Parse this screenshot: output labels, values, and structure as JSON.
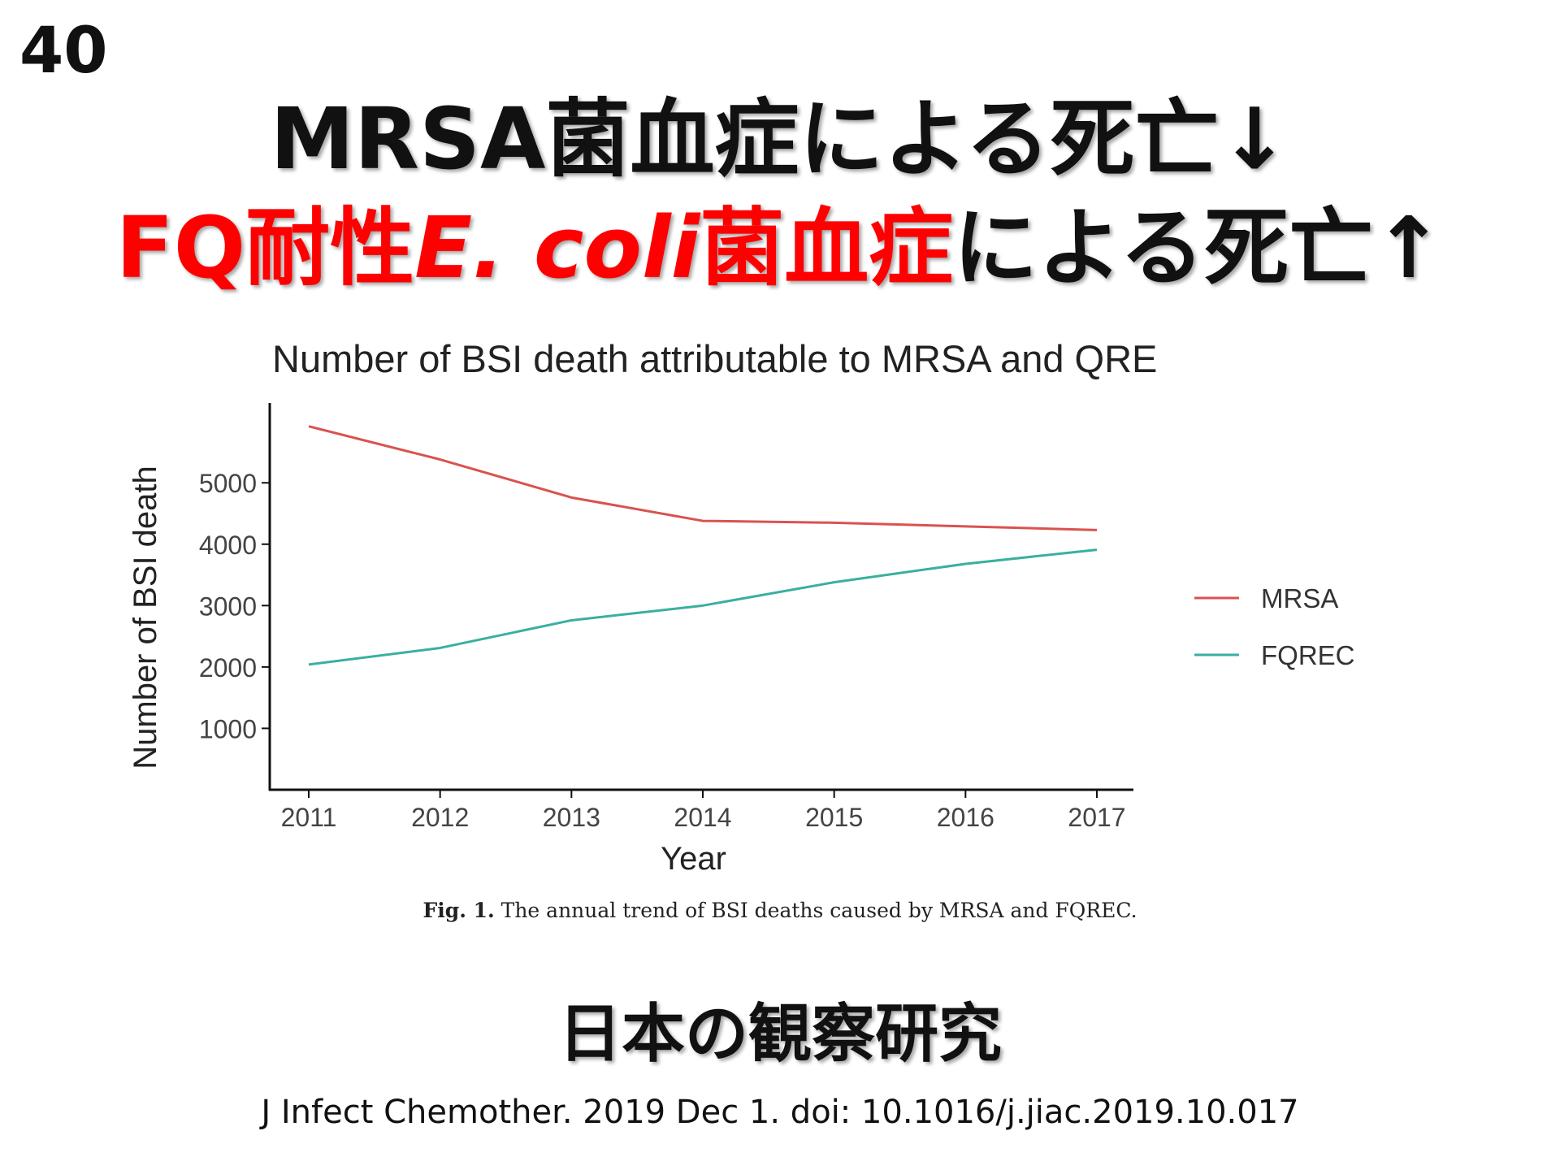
{
  "slide": {
    "number": "40",
    "title_line1": "MRSA菌血症による死亡↓",
    "title_line2": {
      "part_red1": "FQ耐性",
      "part_red_italic": "E. coli",
      "part_red2": "菌血症",
      "part_black": "による死亡↑"
    },
    "subtitle": "日本の観察研究",
    "citation": "J Infect Chemother. 2019 Dec 1.  doi: 10.1016/j.jiac.2019.10.017"
  },
  "figure_caption": {
    "label": "Fig. 1.",
    "text": "The annual trend of BSI deaths caused by MRSA and FQREC."
  },
  "chart_data": {
    "type": "line",
    "title": "Number of BSI death attributable to MRSA and QRE",
    "xlabel": "Year",
    "ylabel": "Number of BSI death",
    "x": [
      2011,
      2012,
      2013,
      2014,
      2015,
      2016,
      2017
    ],
    "xlim": [
      2011,
      2017
    ],
    "ylim": [
      0,
      6300
    ],
    "yticks": [
      1000,
      2000,
      3000,
      4000,
      5000
    ],
    "grid": false,
    "legend_position": "right",
    "series": [
      {
        "name": "MRSA",
        "color": "#d9534f",
        "values": [
          5920,
          5380,
          4760,
          4380,
          4350,
          4290,
          4230
        ]
      },
      {
        "name": "FQREC",
        "color": "#3aafa0",
        "values": [
          2040,
          2310,
          2760,
          3000,
          3380,
          3680,
          3910
        ]
      }
    ]
  }
}
